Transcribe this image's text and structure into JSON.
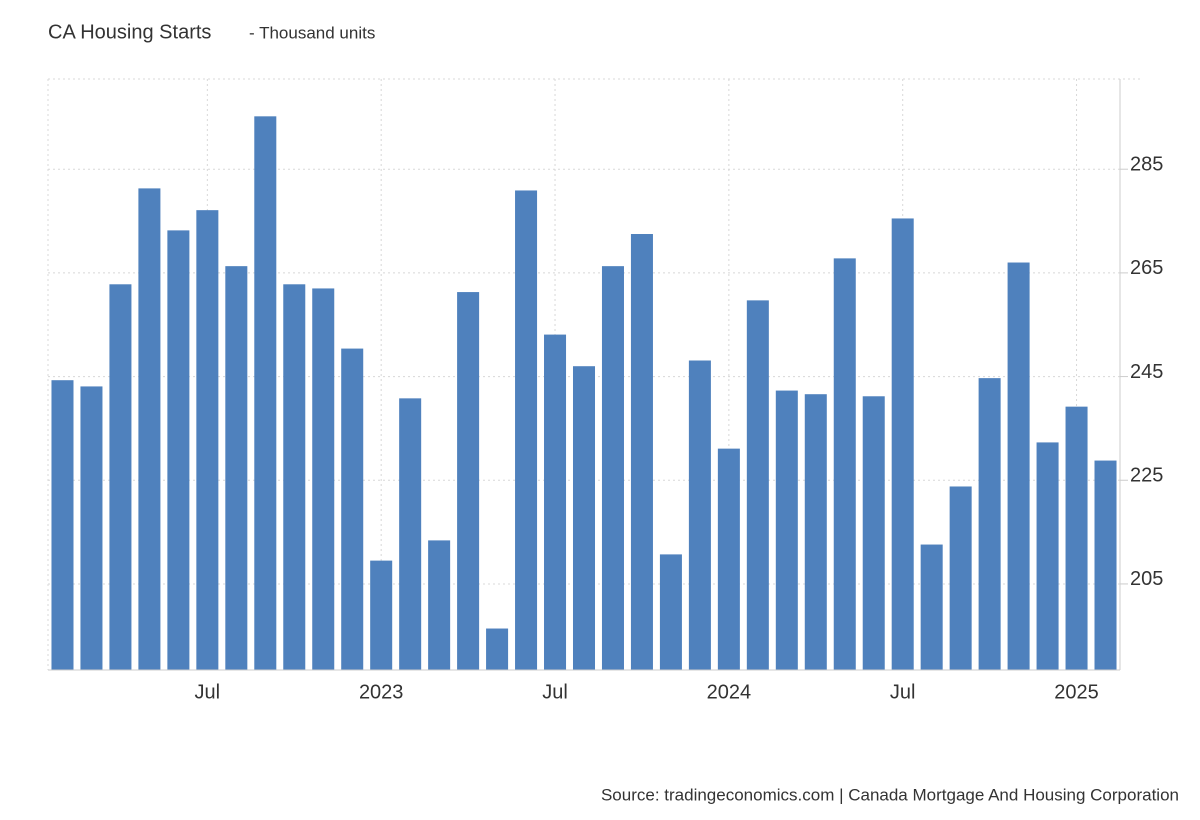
{
  "chart_data": {
    "type": "bar",
    "title": "CA Housing Starts",
    "subtitle": "- Thousand units",
    "source": "Source: tradingeconomics.com | Canada Mortgage And Housing Corporation",
    "categories": [
      null,
      null,
      null,
      null,
      null,
      "Jul",
      null,
      null,
      null,
      null,
      null,
      "2023",
      null,
      null,
      null,
      null,
      null,
      "Jul",
      null,
      null,
      null,
      null,
      null,
      "2024",
      null,
      null,
      null,
      null,
      null,
      "Jul",
      null,
      null,
      null,
      null,
      null,
      "2025",
      null
    ],
    "values": [
      244.3,
      243.1,
      262.8,
      281.3,
      273.2,
      277.1,
      266.3,
      295.2,
      262.8,
      262.0,
      250.4,
      209.5,
      240.8,
      213.4,
      261.3,
      196.4,
      280.9,
      253.1,
      247.0,
      266.3,
      272.5,
      210.7,
      248.1,
      231.1,
      259.7,
      242.3,
      241.6,
      267.8,
      241.2,
      275.5,
      212.6,
      223.8,
      244.7,
      267.0,
      232.3,
      239.2,
      228.8
    ],
    "color": "#4f81bd",
    "ylim": [
      188.4,
      302.4
    ],
    "yticks": [
      205,
      225,
      245,
      265,
      285
    ],
    "grid": true
  }
}
